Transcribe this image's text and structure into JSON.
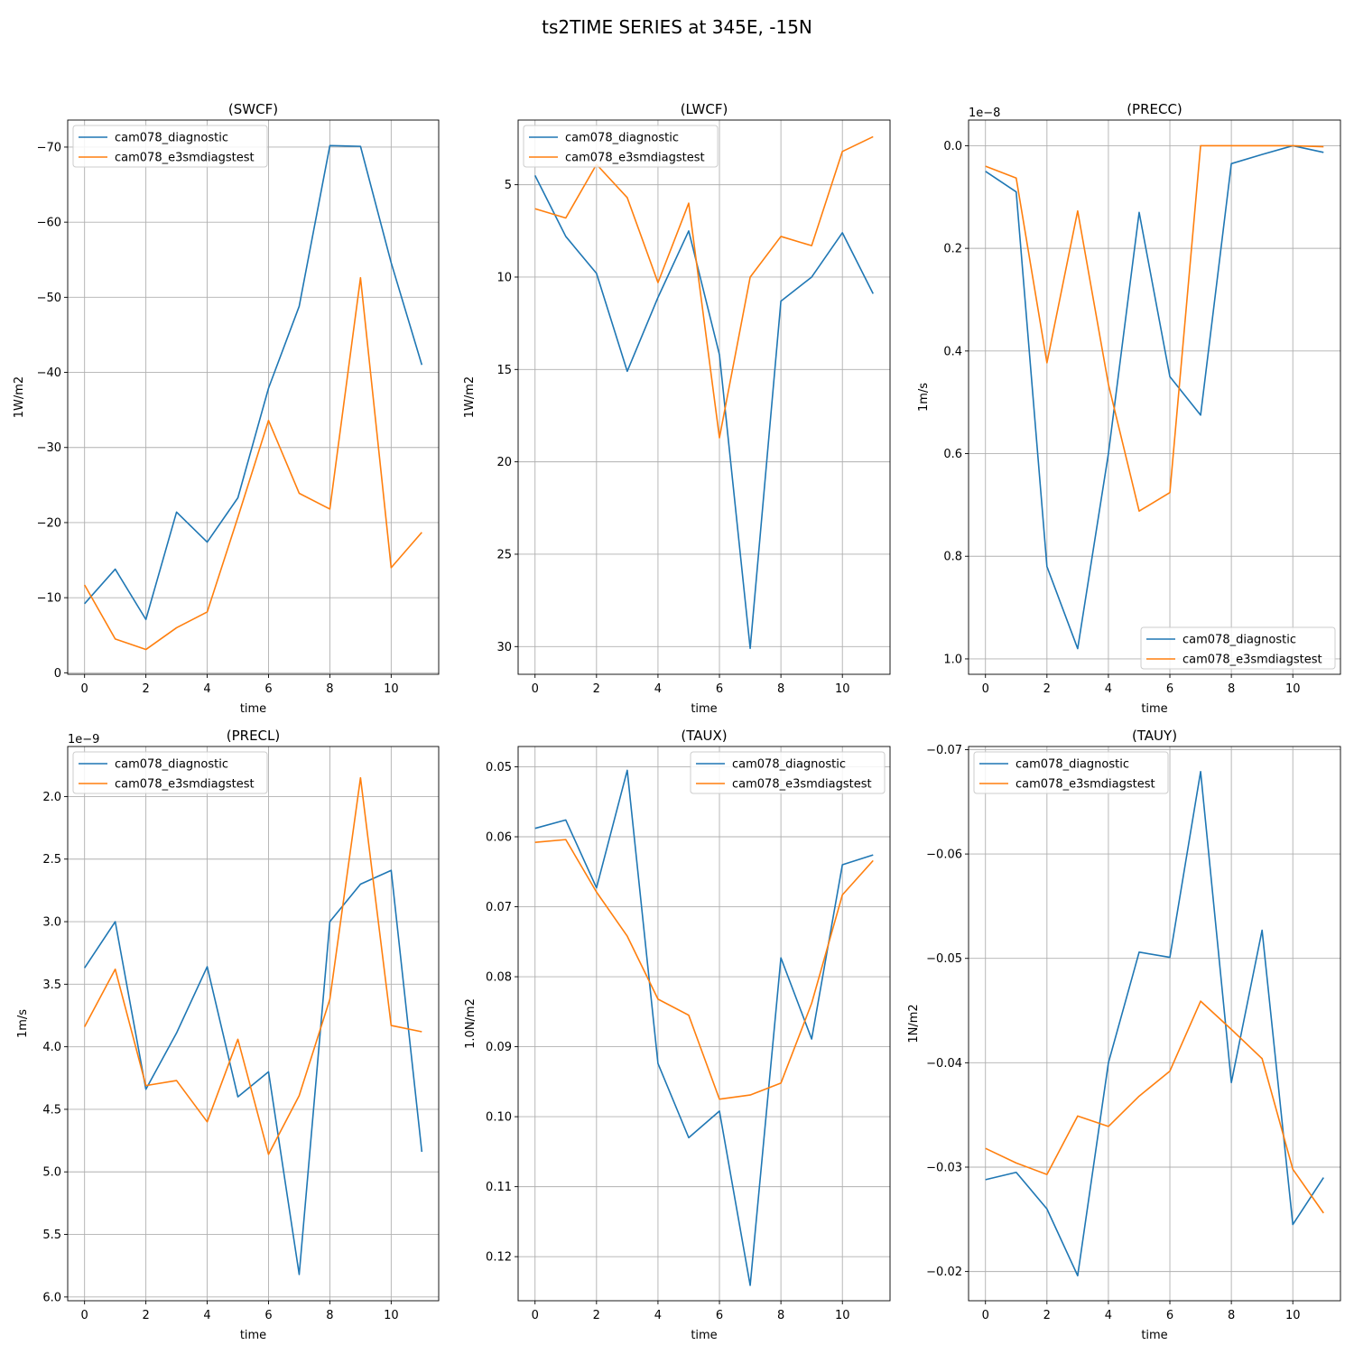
{
  "figure": {
    "title": "ts2TIME SERIES at 345E, -15N",
    "legend_labels": [
      "cam078_diagnostic",
      "cam078_e3smdiagstest"
    ],
    "colors": {
      "series_1": "#1f77b4",
      "series_2": "#ff7f0e",
      "grid": "#b0b0b0",
      "axes": "#000000"
    }
  },
  "chart_data": [
    {
      "type": "line",
      "title": "(SWCF)",
      "xlabel": "time",
      "ylabel": "1W/m2",
      "offset_text": "",
      "legend_position": "upper left",
      "y_inverted": true,
      "xlim": [
        -0.55,
        11.55
      ],
      "ylim": [
        0.2,
        -73.6
      ],
      "xticks": [
        0,
        2,
        4,
        6,
        8,
        10
      ],
      "yticks": [
        0,
        -10,
        -20,
        -30,
        -40,
        -50,
        -60,
        -70
      ],
      "ytick_labels": [
        "0",
        "−10",
        "−20",
        "−30",
        "−40",
        "−50",
        "−60",
        "−70"
      ],
      "x": [
        0,
        1,
        2,
        3,
        4,
        5,
        6,
        7,
        8,
        9,
        10,
        11
      ],
      "series": [
        {
          "name": "cam078_diagnostic",
          "values": [
            -9.2,
            -13.8,
            -7.1,
            -21.4,
            -17.4,
            -23.3,
            -37.9,
            -48.8,
            -70.2,
            -70.1,
            -54.6,
            -41.0
          ]
        },
        {
          "name": "cam078_e3smdiagstest",
          "values": [
            -11.7,
            -4.5,
            -3.1,
            -6.0,
            -8.1,
            -20.7,
            -33.6,
            -23.9,
            -21.8,
            -52.6,
            -14.0,
            -18.7
          ]
        }
      ]
    },
    {
      "type": "line",
      "title": "(LWCF)",
      "xlabel": "time",
      "ylabel": "1W/m2",
      "offset_text": "",
      "legend_position": "upper left",
      "y_inverted": true,
      "xlim": [
        -0.55,
        11.55
      ],
      "ylim": [
        31.5,
        1.5
      ],
      "xticks": [
        0,
        2,
        4,
        6,
        8,
        10
      ],
      "yticks": [
        5,
        10,
        15,
        20,
        25,
        30
      ],
      "ytick_labels": [
        "5",
        "10",
        "15",
        "20",
        "25",
        "30"
      ],
      "x": [
        0,
        1,
        2,
        3,
        4,
        5,
        6,
        7,
        8,
        9,
        10,
        11
      ],
      "series": [
        {
          "name": "cam078_diagnostic",
          "values": [
            4.5,
            7.8,
            9.8,
            15.1,
            11.1,
            7.5,
            14.2,
            30.1,
            11.3,
            10.0,
            7.6,
            10.9
          ]
        },
        {
          "name": "cam078_e3smdiagstest",
          "values": [
            6.3,
            6.8,
            3.9,
            5.7,
            10.3,
            6.0,
            18.7,
            10.0,
            7.8,
            8.3,
            3.2,
            2.4
          ]
        }
      ]
    },
    {
      "type": "line",
      "title": "(PRECC)",
      "xlabel": "time",
      "ylabel": "1m/s",
      "offset_text": "1e−8",
      "legend_position": "lower right",
      "y_inverted": true,
      "xlim": [
        -0.55,
        11.55
      ],
      "ylim": [
        1.03,
        -0.05
      ],
      "xticks": [
        0,
        2,
        4,
        6,
        8,
        10
      ],
      "yticks": [
        0.0,
        0.2,
        0.4,
        0.6,
        0.8,
        1.0
      ],
      "ytick_labels": [
        "0.0",
        "0.2",
        "0.4",
        "0.6",
        "0.8",
        "1.0"
      ],
      "x": [
        0,
        1,
        2,
        3,
        4,
        5,
        6,
        7,
        8,
        9,
        10,
        11
      ],
      "series": [
        {
          "name": "cam078_diagnostic",
          "values": [
            0.05,
            0.09,
            0.82,
            0.98,
            0.6,
            0.13,
            0.45,
            0.525,
            0.035,
            0.017,
            0.0,
            0.013
          ]
        },
        {
          "name": "cam078_e3smdiagstest",
          "values": [
            0.04,
            0.063,
            0.423,
            0.127,
            0.465,
            0.712,
            0.676,
            0.0,
            0.0,
            0.0,
            0.0,
            0.002
          ]
        }
      ]
    },
    {
      "type": "line",
      "title": "(PRECL)",
      "xlabel": "time",
      "ylabel": "1m/s",
      "offset_text": "1e−9",
      "legend_position": "upper left",
      "y_inverted": true,
      "xlim": [
        -0.55,
        11.55
      ],
      "ylim": [
        6.03,
        1.6
      ],
      "xticks": [
        0,
        2,
        4,
        6,
        8,
        10
      ],
      "yticks": [
        2.0,
        2.5,
        3.0,
        3.5,
        4.0,
        4.5,
        5.0,
        5.5,
        6.0
      ],
      "ytick_labels": [
        "2.0",
        "2.5",
        "3.0",
        "3.5",
        "4.0",
        "4.5",
        "5.0",
        "5.5",
        "6.0"
      ],
      "x": [
        0,
        1,
        2,
        3,
        4,
        5,
        6,
        7,
        8,
        9,
        10,
        11
      ],
      "series": [
        {
          "name": "cam078_diagnostic",
          "values": [
            3.37,
            3.0,
            4.34,
            3.89,
            3.36,
            4.4,
            4.2,
            5.82,
            3.0,
            2.7,
            2.59,
            4.84
          ]
        },
        {
          "name": "cam078_e3smdiagstest",
          "values": [
            3.84,
            3.38,
            4.31,
            4.27,
            4.6,
            3.94,
            4.86,
            4.39,
            3.62,
            1.85,
            3.83,
            3.88
          ]
        }
      ]
    },
    {
      "type": "line",
      "title": "(TAUX)",
      "xlabel": "time",
      "ylabel": "1.0N/m2",
      "offset_text": "",
      "legend_position": "upper right",
      "y_inverted": true,
      "xlim": [
        -0.55,
        11.55
      ],
      "ylim": [
        0.1263,
        0.0471
      ],
      "xticks": [
        0,
        2,
        4,
        6,
        8,
        10
      ],
      "yticks": [
        0.05,
        0.06,
        0.07,
        0.08,
        0.09,
        0.1,
        0.11,
        0.12
      ],
      "ytick_labels": [
        "0.05",
        "0.06",
        "0.07",
        "0.08",
        "0.09",
        "0.10",
        "0.11",
        "0.12"
      ],
      "x": [
        0,
        1,
        2,
        3,
        4,
        5,
        6,
        7,
        8,
        9,
        10,
        11
      ],
      "series": [
        {
          "name": "cam078_diagnostic",
          "values": [
            0.0588,
            0.0576,
            0.0673,
            0.0505,
            0.0924,
            0.103,
            0.0992,
            0.1241,
            0.0773,
            0.0889,
            0.064,
            0.0626
          ]
        },
        {
          "name": "cam078_e3smdiagstest",
          "values": [
            0.0608,
            0.0604,
            0.0679,
            0.0742,
            0.0832,
            0.0855,
            0.0975,
            0.0969,
            0.0952,
            0.0838,
            0.0683,
            0.0634
          ]
        }
      ]
    },
    {
      "type": "line",
      "title": "(TAUY)",
      "xlabel": "time",
      "ylabel": "1N/m2",
      "offset_text": "",
      "legend_position": "upper left",
      "y_inverted": false,
      "xlim": [
        -0.55,
        11.55
      ],
      "ylim": [
        -0.0172,
        -0.0703
      ],
      "xticks": [
        0,
        2,
        4,
        6,
        8,
        10
      ],
      "yticks": [
        -0.02,
        -0.03,
        -0.04,
        -0.05,
        -0.06,
        -0.07
      ],
      "ytick_labels": [
        "−0.02",
        "−0.03",
        "−0.04",
        "−0.05",
        "−0.06",
        "−0.07"
      ],
      "x": [
        0,
        1,
        2,
        3,
        4,
        5,
        6,
        7,
        8,
        9,
        10,
        11
      ],
      "series": [
        {
          "name": "cam078_diagnostic",
          "values": [
            -0.0288,
            -0.0295,
            -0.026,
            -0.0196,
            -0.04,
            -0.0506,
            -0.0501,
            -0.0679,
            -0.0381,
            -0.0527,
            -0.0245,
            -0.029
          ]
        },
        {
          "name": "cam078_e3smdiagstest",
          "values": [
            -0.0318,
            -0.0304,
            -0.0293,
            -0.0349,
            -0.0339,
            -0.0368,
            -0.0392,
            -0.0459,
            -0.0432,
            -0.0404,
            -0.0298,
            -0.0256
          ]
        }
      ]
    }
  ]
}
